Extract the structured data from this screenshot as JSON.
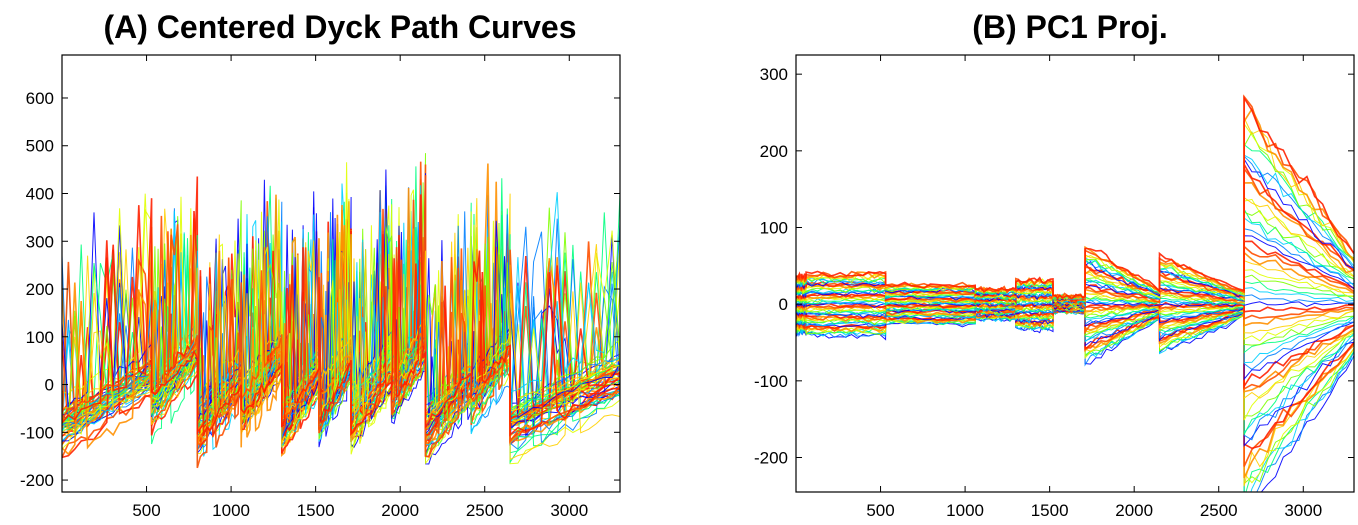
{
  "chart_data": [
    {
      "type": "line",
      "title": "(A) Centered Dyck Path Curves",
      "xlabel": "",
      "ylabel": "",
      "xlim": [
        0,
        3300
      ],
      "ylim": [
        -225,
        690
      ],
      "xticks": [
        500,
        1000,
        1500,
        2000,
        2500,
        3000
      ],
      "yticks": [
        -200,
        -100,
        0,
        100,
        200,
        300,
        400,
        500,
        600
      ],
      "grid": false,
      "legend": "none",
      "series_count": 60,
      "segment_boundaries": [
        0,
        530,
        800,
        1060,
        1300,
        1520,
        1710,
        1950,
        2150,
        2420,
        2650,
        3300
      ],
      "segment_means": [
        -20,
        40,
        -10,
        30,
        -5,
        25,
        10,
        60,
        -20,
        50,
        -10
      ],
      "colormap": [
        "#0000ff",
        "#0080ff",
        "#00d0ff",
        "#00ff80",
        "#80ff00",
        "#e0ff00",
        "#ffd000",
        "#ff9000",
        "#ff5000",
        "#ff2000"
      ]
    },
    {
      "type": "line",
      "title": "(B) PC1 Proj.",
      "xlabel": "",
      "ylabel": "",
      "xlim": [
        0,
        3300
      ],
      "ylim": [
        -245,
        325
      ],
      "xticks": [
        500,
        1000,
        1500,
        2000,
        2500,
        3000
      ],
      "yticks": [
        -200,
        -100,
        0,
        100,
        200,
        300
      ],
      "grid": false,
      "legend": "none",
      "series_count": 60,
      "segments": [
        {
          "x": [
            0,
            60
          ],
          "amp": 40
        },
        {
          "x": [
            60,
            530
          ],
          "amp": 45
        },
        {
          "x": [
            530,
            1060
          ],
          "amp": 28
        },
        {
          "x": [
            1060,
            1300
          ],
          "amp": 22
        },
        {
          "x": [
            1300,
            1520
          ],
          "amp": 35
        },
        {
          "x": [
            1520,
            1710
          ],
          "amp": 12
        },
        {
          "x": [
            1710,
            2150
          ],
          "amp": 85
        },
        {
          "x": [
            2150,
            2650
          ],
          "amp": 70
        },
        {
          "x": [
            2650,
            3300
          ],
          "amp": 300
        }
      ],
      "colormap": [
        "#0000ff",
        "#0080ff",
        "#00d0ff",
        "#00ff80",
        "#80ff00",
        "#e0ff00",
        "#ffd000",
        "#ff9000",
        "#ff5000",
        "#ff2000"
      ]
    }
  ]
}
